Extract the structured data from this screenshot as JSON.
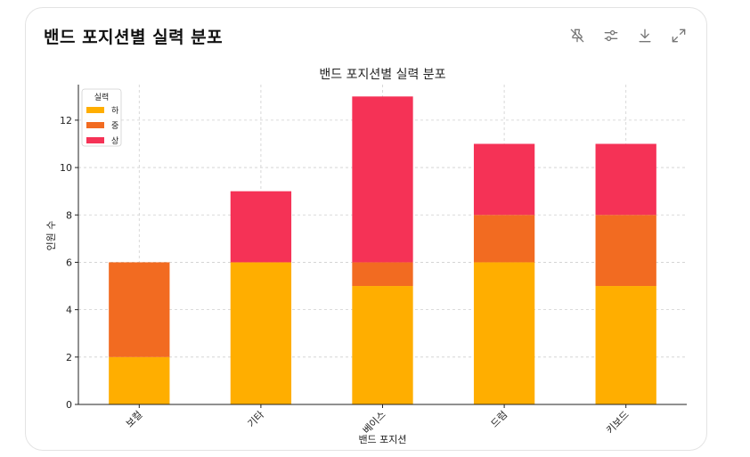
{
  "card": {
    "title": "밴드 포지션별 실력 분포"
  },
  "toolbar": {
    "icons": [
      "pin-off-icon",
      "sliders-icon",
      "download-icon",
      "expand-icon"
    ]
  },
  "chart_data": {
    "type": "bar",
    "stacked": true,
    "title": "밴드 포지션별 실력 분포",
    "xlabel": "밴드 포지션",
    "ylabel": "인원 수",
    "categories": [
      "보컬",
      "기타",
      "베이스",
      "드럼",
      "키보드"
    ],
    "series": [
      {
        "name": "하",
        "color": "#FFAE00",
        "values": [
          2,
          6,
          5,
          6,
          5
        ]
      },
      {
        "name": "중",
        "color": "#F26B21",
        "values": [
          4,
          0,
          1,
          2,
          3
        ]
      },
      {
        "name": "상",
        "color": "#F53256",
        "values": [
          0,
          3,
          7,
          3,
          3
        ]
      }
    ],
    "ylim": [
      0,
      13.5
    ],
    "yticks": [
      0,
      2,
      4,
      6,
      8,
      10,
      12
    ],
    "grid": true,
    "legend": {
      "title": "실력",
      "position": "upper-left"
    }
  }
}
